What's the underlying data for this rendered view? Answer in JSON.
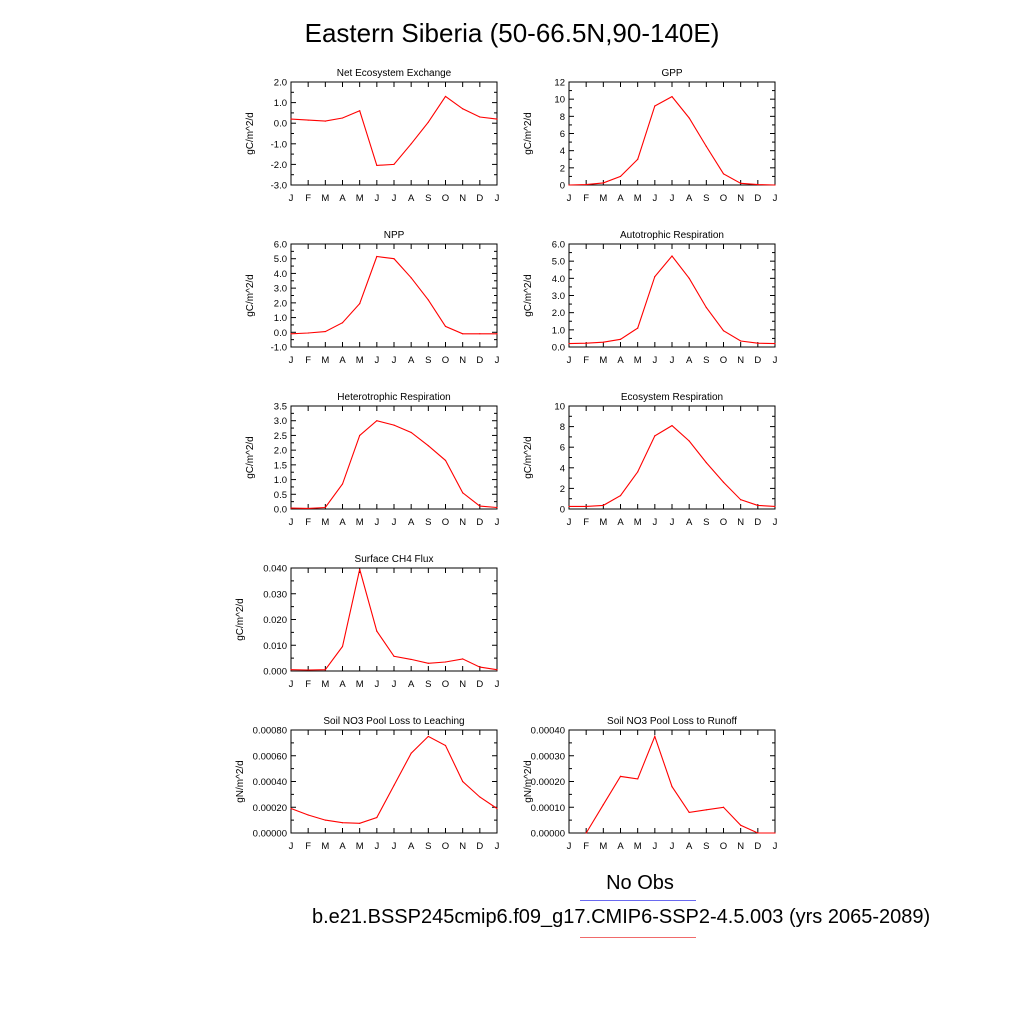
{
  "title": "Eastern Siberia (50-66.5N,90-140E)",
  "legend": {
    "obs_label": "No Obs",
    "case_label": "b.e21.BSSP245cmip6.f09_g17.CMIP6-SSP2-4.5.003 (yrs 2065-2089)",
    "obs_color": "#6a6af0",
    "case_color": "#f06a6a"
  },
  "line_color": "#ff0000",
  "chart_data": [
    {
      "type": "line",
      "title": "Net Ecosystem Exchange",
      "ylabel": "gC/m^2/d",
      "x": [
        "J",
        "F",
        "M",
        "A",
        "M",
        "J",
        "J",
        "A",
        "S",
        "O",
        "N",
        "D",
        "J"
      ],
      "ylim": [
        -3.0,
        2.0
      ],
      "yticks": [
        "2.0",
        "1.0",
        "0.0",
        "-1.0",
        "-2.0",
        "-3.0"
      ],
      "values": [
        0.2,
        0.15,
        0.1,
        0.25,
        0.6,
        -2.05,
        -2.0,
        -1.0,
        0.05,
        1.3,
        0.7,
        0.3,
        0.2
      ]
    },
    {
      "type": "line",
      "title": "GPP",
      "ylabel": "gC/m^2/d",
      "x": [
        "J",
        "F",
        "M",
        "A",
        "M",
        "J",
        "J",
        "A",
        "S",
        "O",
        "N",
        "D",
        "J"
      ],
      "ylim": [
        0,
        12
      ],
      "yticks": [
        "12",
        "10",
        "8",
        "6",
        "4",
        "2",
        "0"
      ],
      "values": [
        0.0,
        0.05,
        0.25,
        1.0,
        3.0,
        9.2,
        10.3,
        7.8,
        4.5,
        1.3,
        0.2,
        0.05,
        0.0
      ]
    },
    {
      "type": "line",
      "title": "NPP",
      "ylabel": "gC/m^2/d",
      "x": [
        "J",
        "F",
        "M",
        "A",
        "M",
        "J",
        "J",
        "A",
        "S",
        "O",
        "N",
        "D",
        "J"
      ],
      "ylim": [
        -1.0,
        6.0
      ],
      "yticks": [
        "6.0",
        "5.0",
        "4.0",
        "3.0",
        "2.0",
        "1.0",
        "0.0",
        "-1.0"
      ],
      "values": [
        -0.1,
        -0.05,
        0.05,
        0.65,
        1.95,
        5.15,
        5.0,
        3.7,
        2.2,
        0.4,
        -0.1,
        -0.1,
        -0.1
      ]
    },
    {
      "type": "line",
      "title": "Autotrophic Respiration",
      "ylabel": "gC/m^2/d",
      "x": [
        "J",
        "F",
        "M",
        "A",
        "M",
        "J",
        "J",
        "A",
        "S",
        "O",
        "N",
        "D",
        "J"
      ],
      "ylim": [
        0,
        6.0
      ],
      "yticks": [
        "6.0",
        "5.0",
        "4.0",
        "3.0",
        "2.0",
        "1.0",
        "0.0"
      ],
      "values": [
        0.2,
        0.22,
        0.28,
        0.45,
        1.1,
        4.1,
        5.3,
        4.0,
        2.3,
        0.95,
        0.35,
        0.22,
        0.2
      ]
    },
    {
      "type": "line",
      "title": "Heterotrophic Respiration",
      "ylabel": "gC/m^2/d",
      "x": [
        "J",
        "F",
        "M",
        "A",
        "M",
        "J",
        "J",
        "A",
        "S",
        "O",
        "N",
        "D",
        "J"
      ],
      "ylim": [
        0,
        3.5
      ],
      "yticks": [
        "3.5",
        "3.0",
        "2.5",
        "2.0",
        "1.5",
        "1.0",
        "0.5",
        "0.0"
      ],
      "values": [
        0.03,
        0.02,
        0.05,
        0.85,
        2.5,
        3.0,
        2.85,
        2.6,
        2.15,
        1.65,
        0.55,
        0.1,
        0.05
      ]
    },
    {
      "type": "line",
      "title": "Ecosystem Respiration",
      "ylabel": "gC/m^2/d",
      "x": [
        "J",
        "F",
        "M",
        "A",
        "M",
        "J",
        "J",
        "A",
        "S",
        "O",
        "N",
        "D",
        "J"
      ],
      "ylim": [
        0,
        10
      ],
      "yticks": [
        "10",
        "8",
        "6",
        "4",
        "2",
        "0"
      ],
      "values": [
        0.25,
        0.25,
        0.35,
        1.3,
        3.6,
        7.1,
        8.1,
        6.6,
        4.5,
        2.6,
        0.9,
        0.35,
        0.25
      ]
    },
    {
      "type": "line",
      "title": "Surface CH4 Flux",
      "ylabel": "gC/m^2/d",
      "x": [
        "J",
        "F",
        "M",
        "A",
        "M",
        "J",
        "J",
        "A",
        "S",
        "O",
        "N",
        "D",
        "J"
      ],
      "ylim": [
        0,
        0.04
      ],
      "yticks": [
        "0.040",
        "0.030",
        "0.020",
        "0.010",
        "0.000"
      ],
      "values": [
        0.0005,
        0.0004,
        0.0005,
        0.0095,
        0.0395,
        0.0155,
        0.0057,
        0.0045,
        0.003,
        0.0035,
        0.0047,
        0.0015,
        0.0005
      ]
    },
    {
      "type": "line",
      "title": "Soil NO3 Pool Loss to Leaching",
      "ylabel": "gN/m^2/d",
      "x": [
        "J",
        "F",
        "M",
        "A",
        "M",
        "J",
        "J",
        "A",
        "S",
        "O",
        "N",
        "D",
        "J"
      ],
      "ylim": [
        0,
        0.0008
      ],
      "yticks": [
        "0.00080",
        "0.00060",
        "0.00040",
        "0.00020",
        "0.00000"
      ],
      "values": [
        0.00019,
        0.00014,
        0.0001,
        8e-05,
        7.5e-05,
        0.00012,
        0.00037,
        0.00062,
        0.00075,
        0.00068,
        0.0004,
        0.00028,
        0.00019
      ]
    },
    {
      "type": "line",
      "title": "Soil NO3 Pool Loss to Runoff",
      "ylabel": "gN/m^2/d",
      "x": [
        "J",
        "F",
        "M",
        "A",
        "M",
        "J",
        "J",
        "A",
        "S",
        "O",
        "N",
        "D",
        "J"
      ],
      "ylim": [
        0,
        0.0004
      ],
      "yticks": [
        "0.00040",
        "0.00030",
        "0.00020",
        "0.00010",
        "0.00000"
      ],
      "values": [
        null,
        0.0,
        0.00011,
        0.00022,
        0.00021,
        0.000375,
        0.00018,
        8e-05,
        9e-05,
        0.0001,
        3e-05,
        0.0,
        0.0
      ]
    }
  ]
}
